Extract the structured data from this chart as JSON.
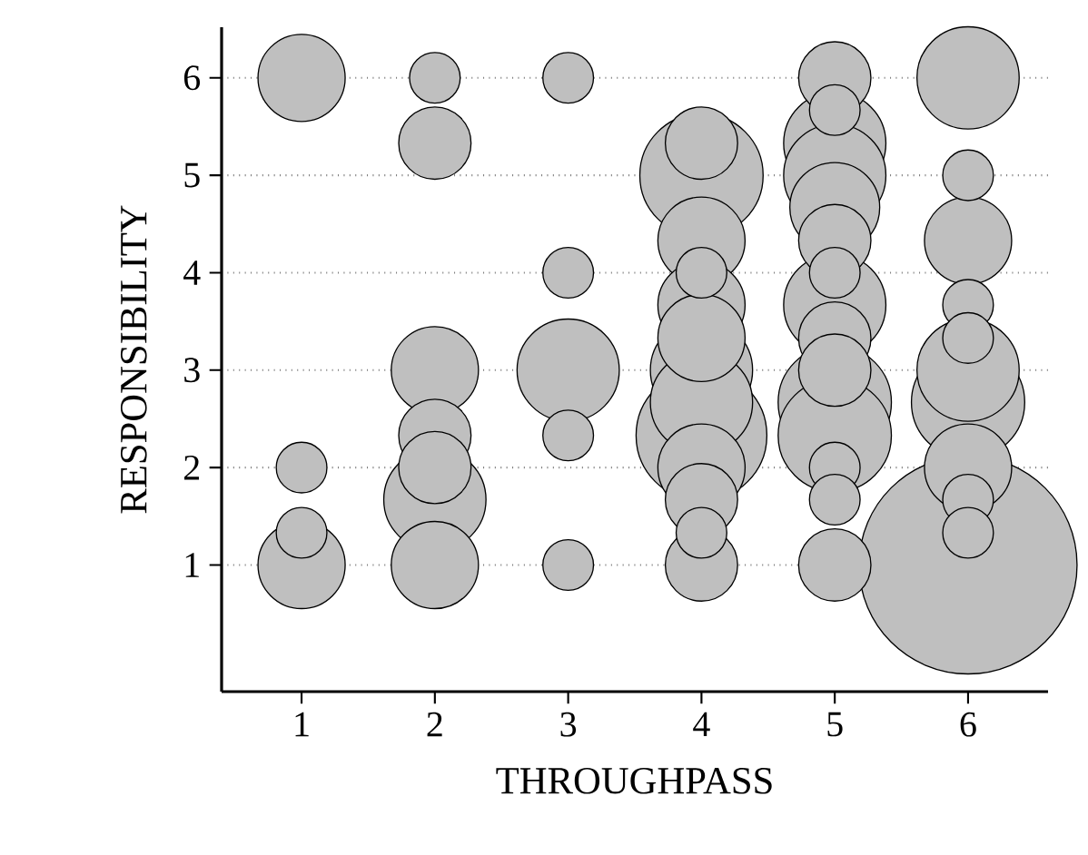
{
  "chart_data": {
    "type": "bubble",
    "xlabel": "THROUGHPASS",
    "ylabel": "RESPONSIBILITY",
    "color": "#bfbfbf",
    "grid": "y",
    "x": [
      1,
      1,
      1,
      1,
      2,
      2,
      2,
      2,
      2,
      2,
      2,
      3,
      3,
      3,
      3,
      3,
      4,
      4,
      4,
      4,
      4,
      4,
      4,
      4,
      4,
      4,
      4,
      4,
      4,
      5,
      5,
      5,
      5,
      5,
      5,
      5,
      5,
      5,
      5,
      5,
      5,
      5,
      5,
      5,
      6,
      6,
      6,
      6,
      6,
      6,
      6,
      6,
      6,
      6,
      6
    ],
    "values": [
      6,
      2,
      1.33,
      1,
      6,
      5.33,
      3,
      2.33,
      2,
      1.67,
      1,
      6,
      4,
      3,
      2.33,
      1,
      5.33,
      5,
      4.33,
      4,
      3.67,
      3.33,
      3,
      2.67,
      2.33,
      2,
      1.67,
      1.33,
      1,
      6,
      5.67,
      5.33,
      5,
      4.67,
      4.33,
      4,
      3.67,
      3.33,
      3,
      2.67,
      2.33,
      2,
      1.67,
      1,
      6,
      5,
      4.33,
      3.67,
      3.33,
      3,
      2.67,
      2,
      1.67,
      1.33,
      1
    ],
    "sizes": [
      0.16,
      0.054,
      0.054,
      0.16,
      0.054,
      0.11,
      0.16,
      0.11,
      0.11,
      0.22,
      0.16,
      0.054,
      0.054,
      0.22,
      0.054,
      0.054,
      0.11,
      0.32,
      0.16,
      0.054,
      0.16,
      0.16,
      0.22,
      0.22,
      0.36,
      0.16,
      0.11,
      0.054,
      0.11,
      0.11,
      0.054,
      0.22,
      0.22,
      0.17,
      0.11,
      0.054,
      0.22,
      0.11,
      0.11,
      0.27,
      0.27,
      0.054,
      0.054,
      0.11,
      0.22,
      0.054,
      0.16,
      0.054,
      0.054,
      0.22,
      0.27,
      0.16,
      0.054,
      0.054,
      1
    ],
    "xlim": [
      0.4,
      6.6
    ],
    "ylim": [
      -0.3,
      6.52
    ],
    "xticks": [
      1,
      2,
      3,
      4,
      5,
      6
    ],
    "yticks": [
      1,
      2,
      3,
      4,
      5,
      6
    ]
  }
}
